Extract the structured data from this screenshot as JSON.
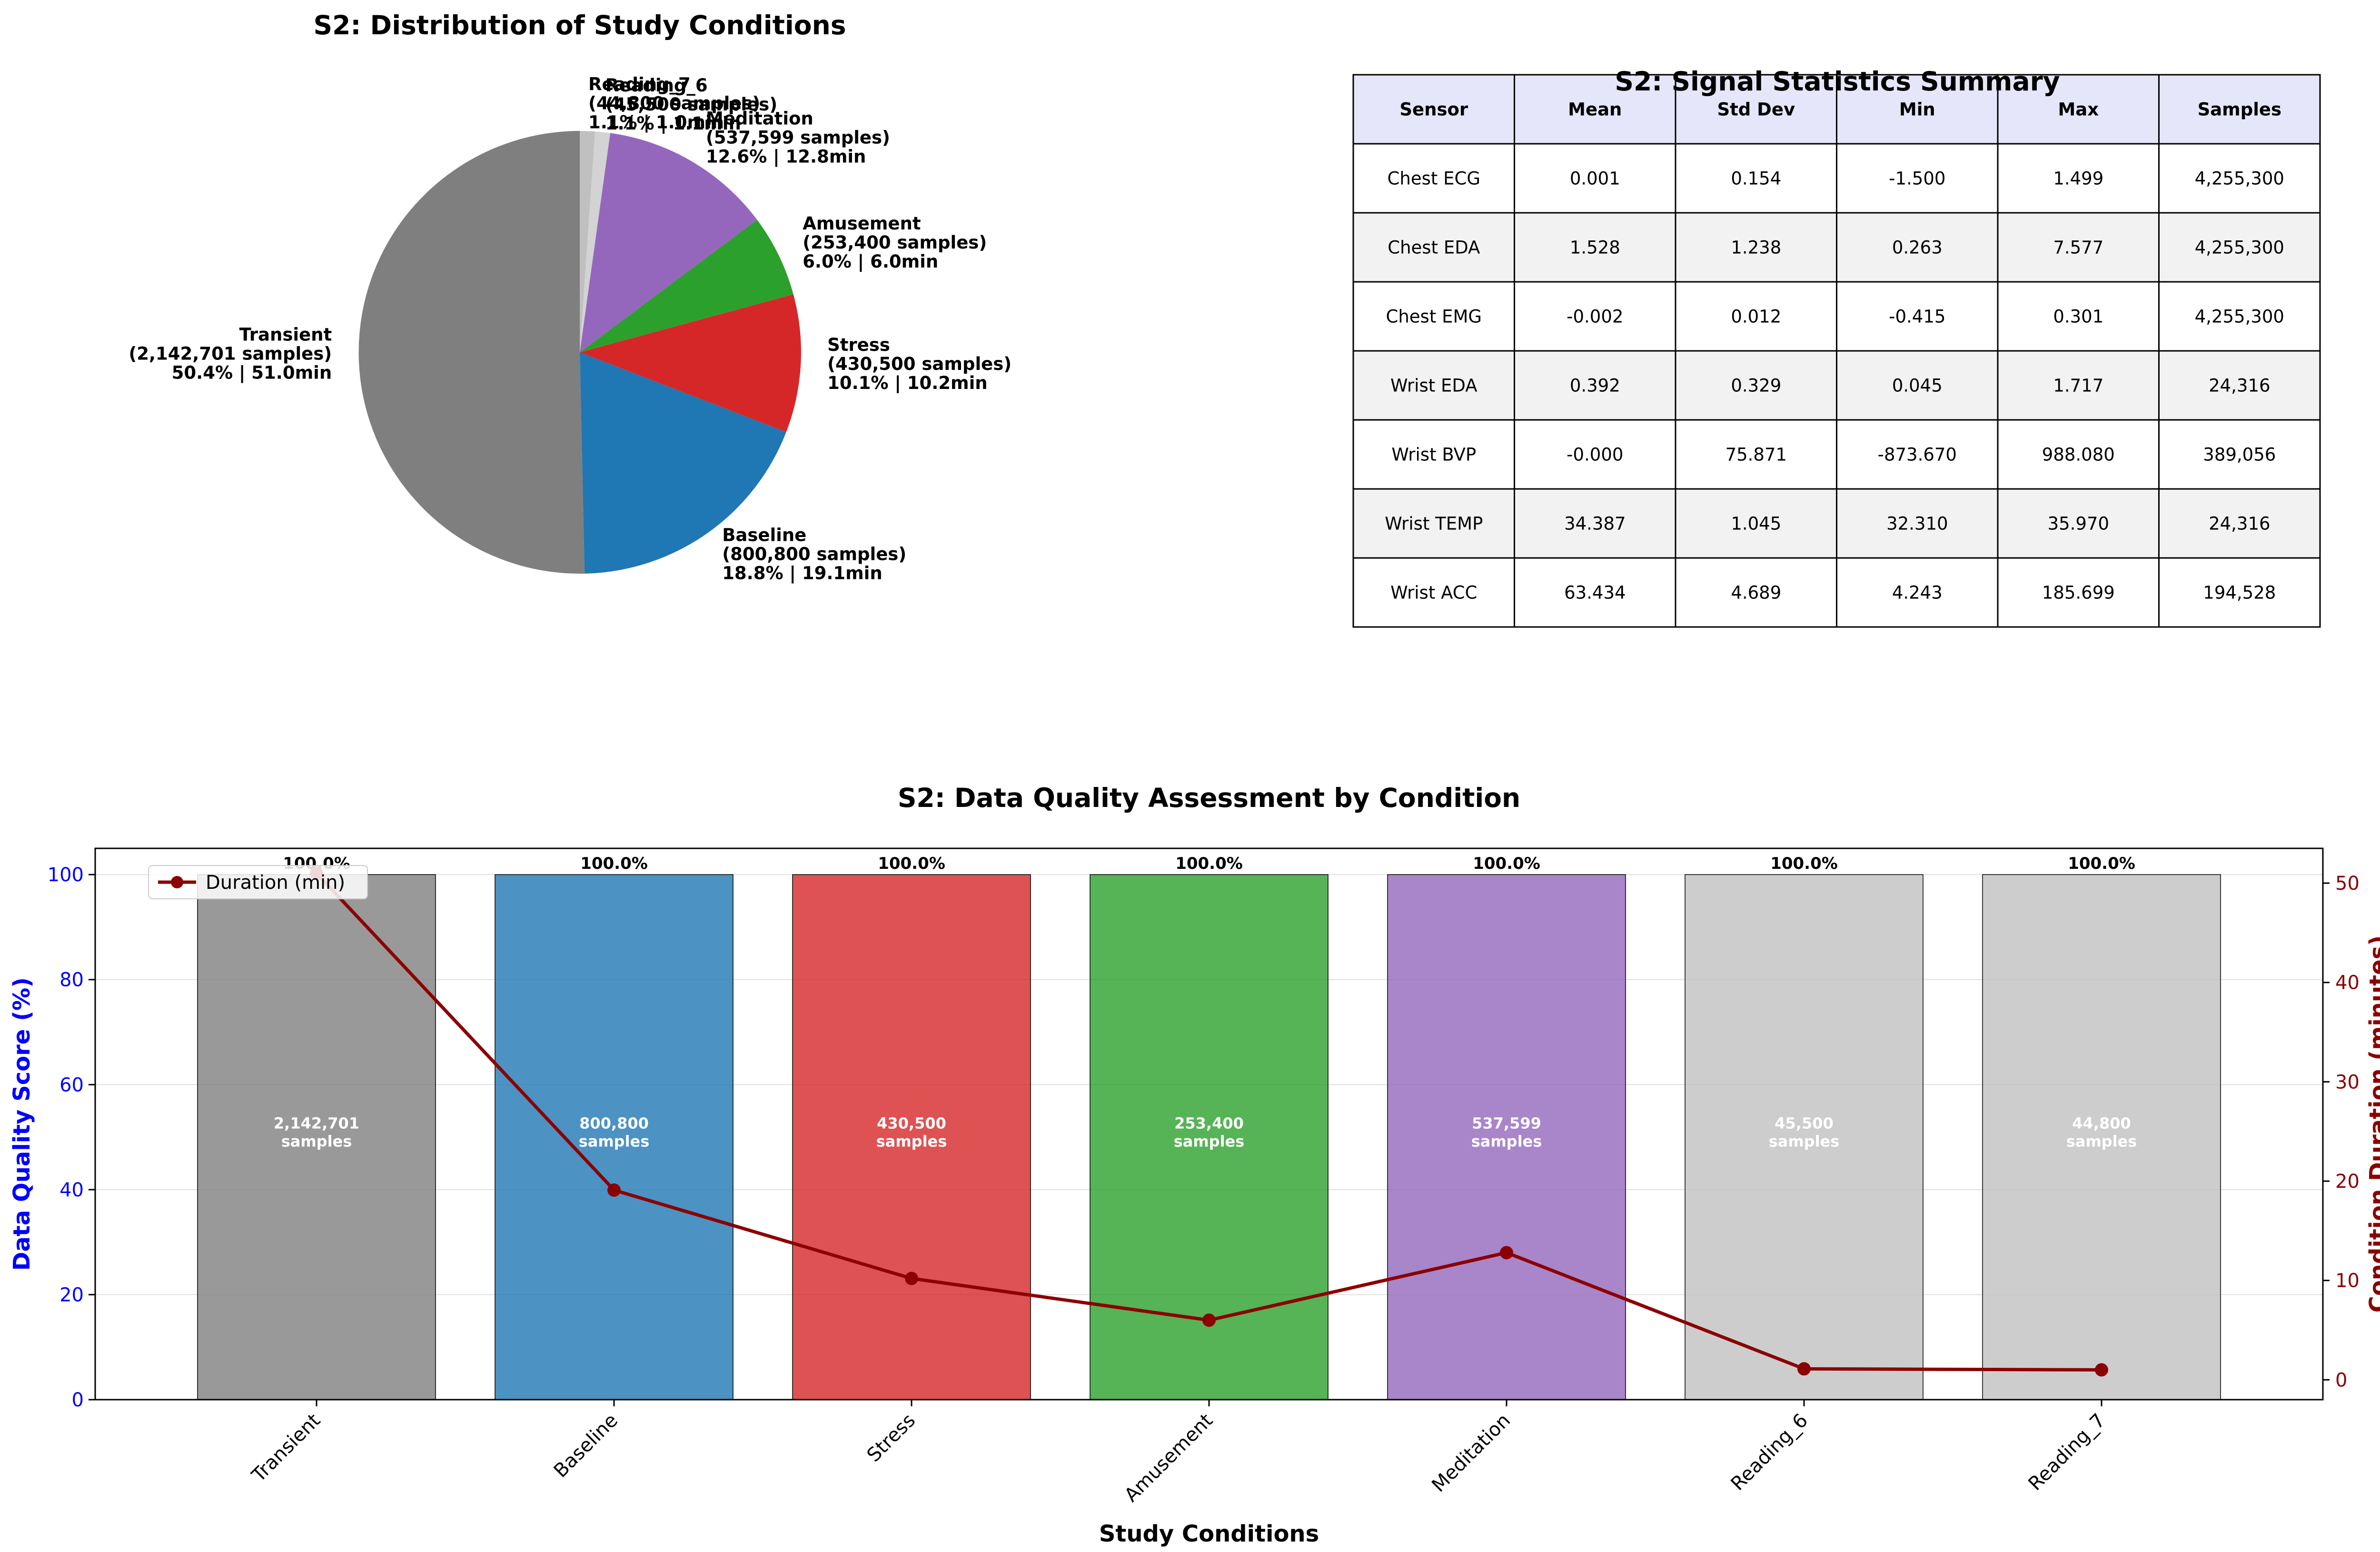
{
  "chart_data": [
    {
      "type": "pie",
      "title": "S2: Distribution of Study Conditions",
      "slices": [
        {
          "label": "Transient",
          "samples": "2,142,701",
          "pct": 50.4,
          "minutes": 51.0,
          "color": "#7f7f7f"
        },
        {
          "label": "Baseline",
          "samples": "800,800",
          "pct": 18.8,
          "minutes": 19.1,
          "color": "#1f77b4"
        },
        {
          "label": "Stress",
          "samples": "430,500",
          "pct": 10.1,
          "minutes": 10.2,
          "color": "#d62728"
        },
        {
          "label": "Amusement",
          "samples": "253,400",
          "pct": 6.0,
          "minutes": 6.0,
          "color": "#2ca02c"
        },
        {
          "label": "Meditation",
          "samples": "537,599",
          "pct": 12.6,
          "minutes": 12.8,
          "color": "#9467bd"
        },
        {
          "label": "Reading_6",
          "samples": "45,500",
          "pct": 1.1,
          "minutes": 1.1,
          "color": "#d3d3d3"
        },
        {
          "label": "Reading_7",
          "samples": "44,800",
          "pct": 1.1,
          "minutes": 1.0,
          "color": "#c0c0c0"
        }
      ]
    },
    {
      "type": "table",
      "title": "S2: Signal Statistics Summary",
      "columns": [
        "Sensor",
        "Mean",
        "Std Dev",
        "Min",
        "Max",
        "Samples"
      ],
      "rows": [
        [
          "Chest ECG",
          "0.001",
          "0.154",
          "-1.500",
          "1.499",
          "4,255,300"
        ],
        [
          "Chest EDA",
          "1.528",
          "1.238",
          "0.263",
          "7.577",
          "4,255,300"
        ],
        [
          "Chest EMG",
          "-0.002",
          "0.012",
          "-0.415",
          "0.301",
          "4,255,300"
        ],
        [
          "Wrist EDA",
          "0.392",
          "0.329",
          "0.045",
          "1.717",
          "24,316"
        ],
        [
          "Wrist BVP",
          "-0.000",
          "75.871",
          "-873.670",
          "988.080",
          "389,056"
        ],
        [
          "Wrist TEMP",
          "34.387",
          "1.045",
          "32.310",
          "35.970",
          "24,316"
        ],
        [
          "Wrist ACC",
          "63.434",
          "4.689",
          "4.243",
          "185.699",
          "194,528"
        ]
      ],
      "header_color": "#e6e6fa",
      "stripe_color": "#f2f2f2"
    },
    {
      "type": "bar",
      "title": "S2: Data Quality Assessment by Condition",
      "xlabel": "Study Conditions",
      "ylabel": "Data Quality Score (%)",
      "y2label": "Condition Duration (minutes)",
      "categories": [
        "Transient",
        "Baseline",
        "Stress",
        "Amusement",
        "Meditation",
        "Reading_6",
        "Reading_7"
      ],
      "quality": [
        100.0,
        100.0,
        100.0,
        100.0,
        100.0,
        100.0,
        100.0
      ],
      "quality_labels": [
        "100.0%",
        "100.0%",
        "100.0%",
        "100.0%",
        "100.0%",
        "100.0%",
        "100.0%"
      ],
      "sample_labels": [
        "2,142,701",
        "800,800",
        "430,500",
        "253,400",
        "537,599",
        "45,500",
        "44,800"
      ],
      "samples_word": "samples",
      "duration": [
        51.0,
        19.1,
        10.2,
        6.0,
        12.8,
        1.1,
        1.0
      ],
      "duration_series_name": "Duration (min)",
      "bar_colors": [
        "#7f7f7f",
        "#1f77b4",
        "#d62728",
        "#2ca02c",
        "#9467bd",
        "#c0c0c0",
        "#c0c0c0"
      ],
      "line_color": "#8b0000",
      "ylim": [
        0,
        105
      ],
      "y2lim": [
        -2,
        53.5
      ],
      "yticks": [
        0,
        20,
        40,
        60,
        80,
        100
      ],
      "y2ticks": [
        0,
        10,
        20,
        30,
        40,
        50
      ],
      "grid": true,
      "legend": "upper left"
    }
  ]
}
